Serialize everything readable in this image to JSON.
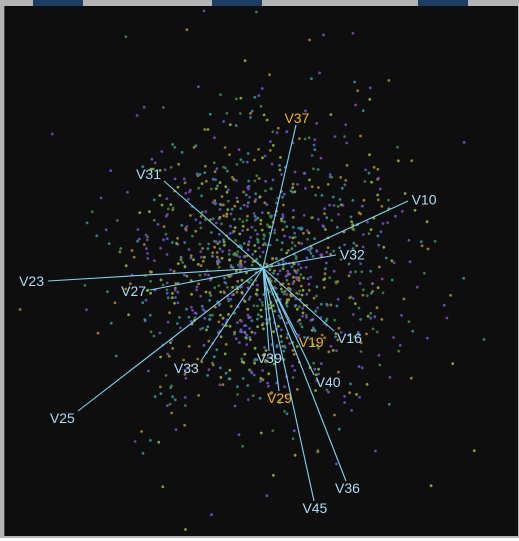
{
  "theme": {
    "background": "#0e0e0e",
    "frame": "#b5b5b5",
    "tab_color": "#1d3d63",
    "line_color": "#7fd3f2",
    "label_color": "#a8ddf5",
    "highlight_color": "#f2b01e"
  },
  "chart_data": {
    "type": "scatter",
    "title": "",
    "xlabel": "",
    "ylabel": "",
    "grid": false,
    "legend": "none",
    "xlim": [
      -3,
      3
    ],
    "ylim": [
      -3,
      3
    ],
    "point_colors": [
      "#3d8a4c",
      "#5f5fd6",
      "#7b4bc2",
      "#b38a2e",
      "#2f9aa0",
      "#8fbf3a"
    ],
    "point_count": 1200,
    "loading_vectors": [
      {
        "name": "V37",
        "x": 0.33,
        "y": 1.43,
        "highlight": true
      },
      {
        "name": "V31",
        "x": -0.99,
        "y": 0.87,
        "highlight": false
      },
      {
        "name": "V10",
        "x": 1.45,
        "y": 0.67,
        "highlight": false
      },
      {
        "name": "V32",
        "x": 0.73,
        "y": 0.13,
        "highlight": false
      },
      {
        "name": "V23",
        "x": -2.15,
        "y": -0.13,
        "highlight": false
      },
      {
        "name": "V27",
        "x": -1.13,
        "y": -0.22,
        "highlight": false
      },
      {
        "name": "V16",
        "x": 0.71,
        "y": -0.63,
        "highlight": false
      },
      {
        "name": "V19",
        "x": 0.34,
        "y": -0.67,
        "highlight": true
      },
      {
        "name": "V39",
        "x": 0.06,
        "y": -0.83,
        "highlight": false
      },
      {
        "name": "V40",
        "x": 0.51,
        "y": -1.07,
        "highlight": false
      },
      {
        "name": "V33",
        "x": -0.62,
        "y": -0.93,
        "highlight": false
      },
      {
        "name": "V29",
        "x": 0.16,
        "y": -1.23,
        "highlight": true
      },
      {
        "name": "V25",
        "x": -1.85,
        "y": -1.43,
        "highlight": false
      },
      {
        "name": "V36",
        "x": 0.83,
        "y": -2.13,
        "highlight": false
      },
      {
        "name": "V45",
        "x": 0.51,
        "y": -2.33,
        "highlight": false
      }
    ]
  }
}
